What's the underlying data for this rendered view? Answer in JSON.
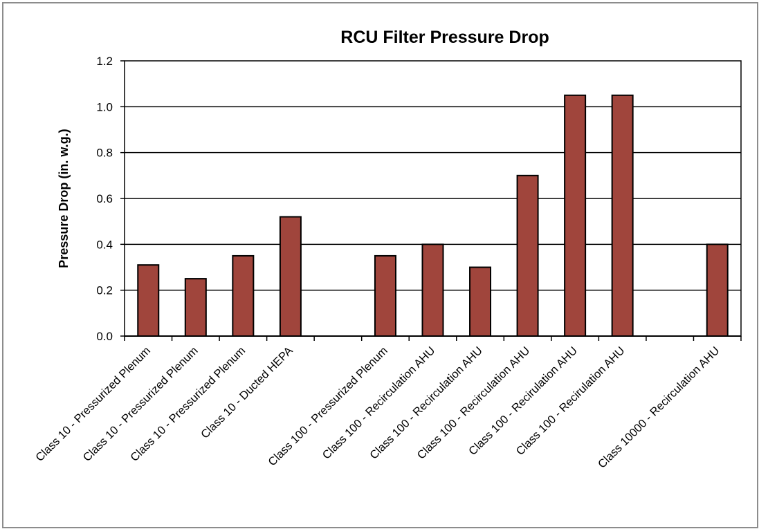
{
  "chart_data": {
    "type": "bar",
    "title": "RCU Filter Pressure Drop",
    "xlabel": "",
    "ylabel": "Pressure Drop (in. w.g.)",
    "ylim": [
      0,
      1.2
    ],
    "yticks": [
      "0.0",
      "0.2",
      "0.4",
      "0.6",
      "0.8",
      "1.0",
      "1.2"
    ],
    "grid": true,
    "legend": "none",
    "bar_color": "#a0453c",
    "categories": [
      "Class 10 - Pressurized Plenum",
      "Class 10 - Pressurized Plenum",
      "Class 10 - Pressurized Plenum",
      "Class 10 - Ducted HEPA",
      "",
      "Class 100 - Pressurized Plenum",
      "Class 100 - Recirculation AHU",
      "Class 100 - Recirculation AHU",
      "Class 100 - Recirculation AHU",
      "Class 100 - Recirulation AHU",
      "Class 100 - Recirulation AHU",
      "",
      "Class 10000 - Recirculation AHU"
    ],
    "values": [
      0.31,
      0.25,
      0.35,
      0.52,
      null,
      0.35,
      0.4,
      0.3,
      0.7,
      1.05,
      1.05,
      null,
      0.4
    ]
  }
}
